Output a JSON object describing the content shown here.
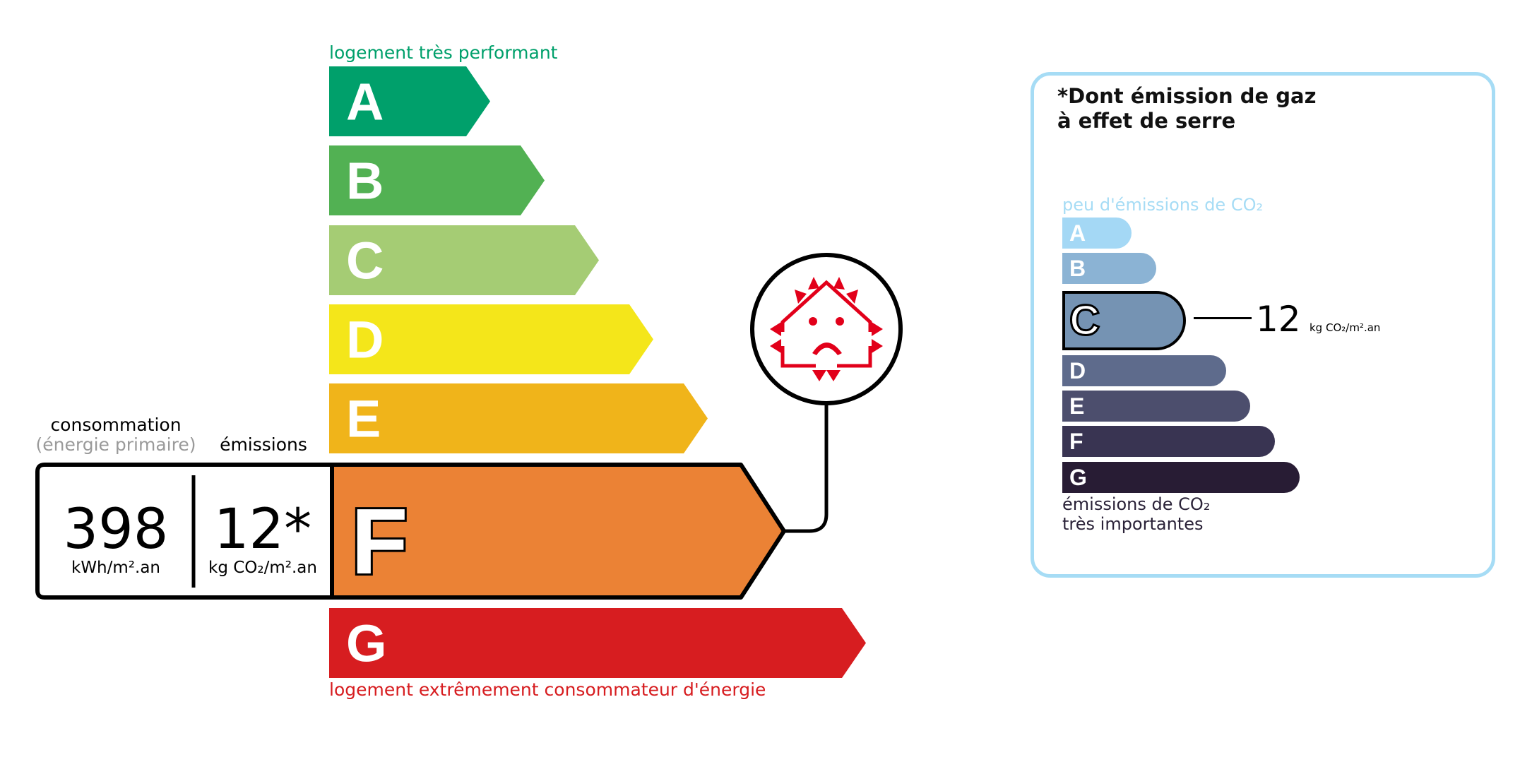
{
  "energy": {
    "top_label": "logement très performant",
    "bottom_label": "logement extrêmement consommateur d'énergie",
    "top_label_color": "#00a06b",
    "bottom_label_color": "#d71d20",
    "classes": [
      {
        "letter": "A",
        "color": "#00a06b"
      },
      {
        "letter": "B",
        "color": "#52b153"
      },
      {
        "letter": "C",
        "color": "#a5cc74"
      },
      {
        "letter": "D",
        "color": "#f4e61a"
      },
      {
        "letter": "E",
        "color": "#f0b41a"
      },
      {
        "letter": "F",
        "color": "#eb8235"
      },
      {
        "letter": "G",
        "color": "#d71d20"
      }
    ],
    "selected_class": "F",
    "consumption_label": "consommation",
    "consumption_sublabel": "(énergie primaire)",
    "emissions_label": "émissions",
    "consumption_value": "398",
    "consumption_unit": "kWh/m².an",
    "emissions_value": "12*",
    "emissions_unit": "kg CO₂/m².an",
    "icon": "poorly-insulated-house-sad-face-icon",
    "icon_color": "#e2001a"
  },
  "ghg": {
    "title_line1": "*Dont émission de gaz",
    "title_line2": "à effet de serre",
    "top_label": "peu d'émissions de CO₂",
    "bottom_label_line1": "émissions de CO₂",
    "bottom_label_line2": "très importantes",
    "border_color": "#a6dcf5",
    "classes": [
      {
        "letter": "A",
        "color": "#a4d8f5"
      },
      {
        "letter": "B",
        "color": "#8bb3d4"
      },
      {
        "letter": "C",
        "color": "#7593b3"
      },
      {
        "letter": "D",
        "color": "#5e6b8c"
      },
      {
        "letter": "E",
        "color": "#4c4e6d"
      },
      {
        "letter": "F",
        "color": "#393452"
      },
      {
        "letter": "G",
        "color": "#281c34"
      }
    ],
    "selected_class": "C",
    "value": "12",
    "unit": "kg CO₂/m².an"
  }
}
